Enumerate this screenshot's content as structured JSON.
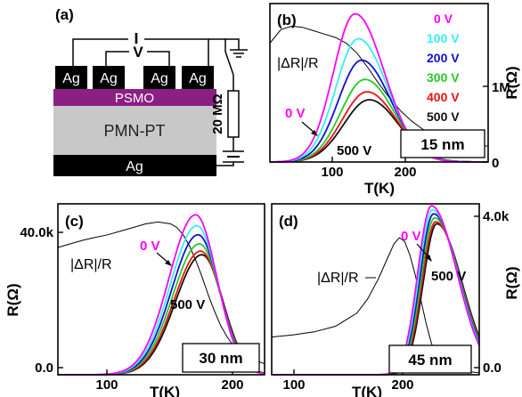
{
  "schematic": {
    "panel_label": "(a)",
    "current_label": "I",
    "voltage_label": "V",
    "electrode_label": "Ag",
    "film_label": "PSMO",
    "substrate_label": "PMN-PT",
    "bottom_electrode_label": "Ag",
    "resistor_label": "20 MΩ",
    "colors": {
      "film": "#8b1f84",
      "substrate": "#c8c8c8",
      "electrode": "#000000"
    }
  },
  "voltages": [
    "0 V",
    "100 V",
    "200 V",
    "300 V",
    "400 V",
    "500 V"
  ],
  "voltage_colors": [
    "#ff00ff",
    "#33f0f0",
    "#1010d0",
    "#22cc22",
    "#ee1111",
    "#111111"
  ],
  "chart_data": [
    {
      "type": "line",
      "panel_label": "(b)",
      "thickness_label": "15 nm",
      "xlabel": "T(K)",
      "ylabel": "R(Ω)",
      "xlim": [
        50,
        250
      ],
      "ylim": [
        0,
        1400000
      ],
      "x_ticks": [
        "100",
        "200"
      ],
      "y_ticks": [
        "0",
        "1M"
      ],
      "legend_position": "top-right",
      "annotations": {
        "dr_label": "|ΔR|/R",
        "low_v": "0 V",
        "high_v": "500 V"
      },
      "series": [
        {
          "name": "0 V",
          "color": "#ff00ff",
          "peak_x": 128,
          "peak_y": 1310000,
          "width_left": 28,
          "width_right": 38
        },
        {
          "name": "100 V",
          "color": "#33f0f0",
          "peak_x": 131,
          "peak_y": 1090000,
          "width_left": 29,
          "width_right": 38
        },
        {
          "name": "200 V",
          "color": "#1010d0",
          "peak_x": 134,
          "peak_y": 900000,
          "width_left": 30,
          "width_right": 38
        },
        {
          "name": "300 V",
          "color": "#22cc22",
          "peak_x": 137,
          "peak_y": 730000,
          "width_left": 31,
          "width_right": 38
        },
        {
          "name": "400 V",
          "color": "#ee1111",
          "peak_x": 139,
          "peak_y": 620000,
          "width_left": 32,
          "width_right": 38
        },
        {
          "name": "500 V",
          "color": "#111111",
          "peak_x": 141,
          "peak_y": 550000,
          "width_left": 33,
          "width_right": 38
        }
      ],
      "dr_curve": {
        "x": [
          50,
          60,
          70,
          80,
          90,
          100,
          110,
          120,
          130,
          140,
          150,
          160,
          170,
          180,
          190,
          200,
          215,
          230,
          250
        ],
        "y": [
          1050000,
          1170000,
          1200000,
          1190000,
          1160000,
          1130000,
          1100000,
          1050000,
          960000,
          830000,
          690000,
          560000,
          450000,
          360000,
          290000,
          240000,
          190000,
          160000,
          140000
        ]
      }
    },
    {
      "type": "line",
      "panel_label": "(c)",
      "thickness_label": "30 nm",
      "xlabel": "T(K)",
      "ylabel": "R(Ω)",
      "xlim": [
        60,
        225
      ],
      "ylim": [
        0,
        47000
      ],
      "x_ticks": [
        "100",
        "200"
      ],
      "y_ticks": [
        "0.0",
        "40.0k"
      ],
      "annotations": {
        "dr_label": "|ΔR|/R",
        "low_v": "0 V",
        "high_v": "500 V"
      },
      "series": [
        {
          "name": "0 V",
          "color": "#ff00ff",
          "peak_x": 170,
          "peak_y": 44000,
          "width_left": 30,
          "width_right": 24
        },
        {
          "name": "100 V",
          "color": "#33f0f0",
          "peak_x": 171,
          "peak_y": 41000,
          "width_left": 30,
          "width_right": 24
        },
        {
          "name": "200 V",
          "color": "#1010d0",
          "peak_x": 172,
          "peak_y": 38500,
          "width_left": 30,
          "width_right": 24
        },
        {
          "name": "300 V",
          "color": "#22cc22",
          "peak_x": 173,
          "peak_y": 36000,
          "width_left": 30,
          "width_right": 24
        },
        {
          "name": "400 V",
          "color": "#ee1111",
          "peak_x": 174,
          "peak_y": 34000,
          "width_left": 30,
          "width_right": 24
        },
        {
          "name": "500 V",
          "color": "#111111",
          "peak_x": 175,
          "peak_y": 33000,
          "width_left": 30,
          "width_right": 24
        }
      ],
      "dr_curve": {
        "x": [
          60,
          70,
          80,
          90,
          100,
          110,
          120,
          130,
          140,
          150,
          155,
          160,
          165,
          170,
          175,
          180,
          185,
          190,
          195,
          200,
          210,
          225
        ],
        "y": [
          35000,
          36000,
          37000,
          37800,
          38500,
          39500,
          40500,
          41500,
          42000,
          41500,
          40500,
          38500,
          35500,
          31500,
          27000,
          22000,
          17500,
          13500,
          10500,
          8000,
          5000,
          3000
        ]
      }
    },
    {
      "type": "line",
      "panel_label": "(d)",
      "thickness_label": "45 nm",
      "xlabel": "T(K)",
      "ylabel": "R(Ω)",
      "xlim": [
        90,
        285
      ],
      "ylim": [
        0,
        4300
      ],
      "x_ticks": [
        "100",
        "200"
      ],
      "y_ticks": [
        "0.0",
        "4.0k"
      ],
      "annotations": {
        "dr_label": "|ΔR|/R",
        "low_v": "0 V",
        "high_v": "500 V"
      },
      "series": [
        {
          "name": "0 V",
          "color": "#ff00ff",
          "peak_x": 240,
          "peak_y": 4250,
          "width_left": 18,
          "width_right": 34
        },
        {
          "name": "100 V",
          "color": "#33f0f0",
          "peak_x": 241,
          "peak_y": 4150,
          "width_left": 18,
          "width_right": 34
        },
        {
          "name": "200 V",
          "color": "#1010d0",
          "peak_x": 242,
          "peak_y": 4050,
          "width_left": 18,
          "width_right": 34
        },
        {
          "name": "300 V",
          "color": "#22cc22",
          "peak_x": 243,
          "peak_y": 3950,
          "width_left": 18,
          "width_right": 34
        },
        {
          "name": "400 V",
          "color": "#ee1111",
          "peak_x": 244,
          "peak_y": 3850,
          "width_left": 18,
          "width_right": 34
        },
        {
          "name": "500 V",
          "color": "#111111",
          "peak_x": 245,
          "peak_y": 3800,
          "width_left": 18,
          "width_right": 34
        }
      ],
      "dr_curve": {
        "x": [
          90,
          110,
          130,
          150,
          170,
          180,
          190,
          200,
          205,
          210,
          215,
          220,
          225,
          230,
          235,
          240,
          245,
          250,
          260,
          285
        ],
        "y": [
          950,
          1000,
          1080,
          1220,
          1550,
          1900,
          2400,
          3000,
          3300,
          3450,
          3350,
          3000,
          2500,
          1900,
          1300,
          800,
          450,
          250,
          120,
          50
        ]
      }
    }
  ]
}
